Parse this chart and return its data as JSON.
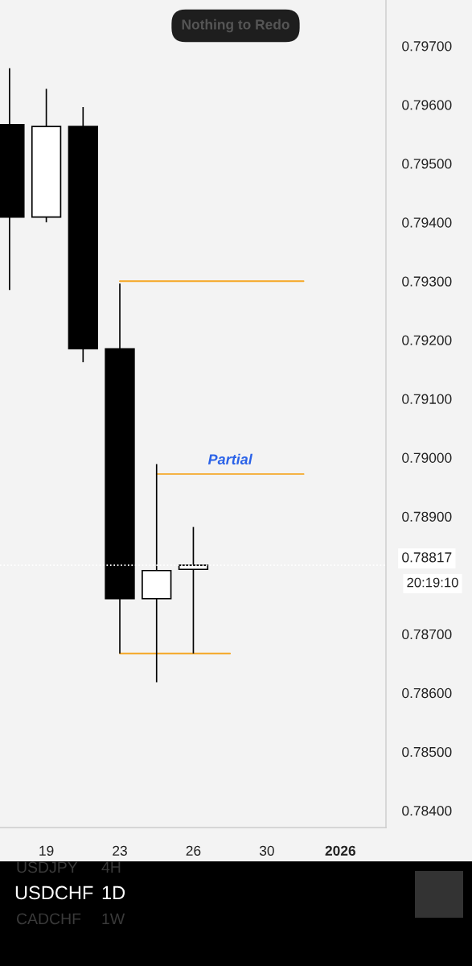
{
  "chart_data": {
    "type": "candlestick",
    "categories": [
      null,
      "19",
      null,
      "23",
      null,
      "26",
      null,
      "30",
      null,
      "2026",
      null
    ],
    "ohlc": [
      [
        0.79566,
        0.79662,
        0.79285,
        0.79409
      ],
      [
        0.79409,
        0.79627,
        0.794,
        0.79563
      ],
      [
        0.79563,
        0.79596,
        0.79162,
        0.79185
      ],
      [
        0.79185,
        0.79296,
        0.78667,
        0.7876
      ],
      [
        0.7876,
        0.78989,
        0.78618,
        0.78808
      ],
      [
        0.7881,
        0.78882,
        0.78667,
        0.78817
      ],
      null,
      null,
      null,
      null,
      null
    ],
    "ylim": [
      0.78371,
      0.79778
    ],
    "yticks": [
      {
        "value": 0.797,
        "label": "0.79700"
      },
      {
        "value": 0.796,
        "label": "0.79600"
      },
      {
        "value": 0.795,
        "label": "0.79500"
      },
      {
        "value": 0.794,
        "label": "0.79400"
      },
      {
        "value": 0.793,
        "label": "0.79300"
      },
      {
        "value": 0.792,
        "label": "0.79200"
      },
      {
        "value": 0.791,
        "label": "0.79100"
      },
      {
        "value": 0.79,
        "label": "0.79000"
      },
      {
        "value": 0.789,
        "label": "0.78900"
      },
      {
        "value": 0.787,
        "label": "0.78700"
      },
      {
        "value": 0.786,
        "label": "0.78600"
      },
      {
        "value": 0.785,
        "label": "0.78500"
      },
      {
        "value": 0.784,
        "label": "0.78400"
      }
    ],
    "series": [
      {
        "type": "line",
        "values": [
          null,
          null,
          null,
          0.793,
          0.793,
          0.793,
          0.793,
          0.793,
          0.793,
          null,
          null
        ],
        "color": "#f5a623"
      },
      {
        "type": "line",
        "values": [
          null,
          null,
          null,
          null,
          0.78972,
          0.78972,
          0.78972,
          0.78972,
          0.78972,
          null,
          null
        ],
        "color": "#f5a623"
      },
      {
        "type": "line",
        "values": [
          null,
          null,
          null,
          0.78667,
          0.78667,
          0.78667,
          0.78667,
          null,
          null,
          null,
          null
        ],
        "color": "#f5a623"
      }
    ],
    "ref_lines": [
      {
        "axis": "y",
        "value": 0.78817,
        "label": "0.78817",
        "color": "#ffffff",
        "line_style": "dotted"
      }
    ],
    "annotations": [
      "Partial",
      "20:19:10",
      "Nothing to Redo",
      "USDJPY",
      "4H",
      "USDCHF",
      "1D",
      "CADCHF",
      "1W"
    ],
    "grid": false
  }
}
